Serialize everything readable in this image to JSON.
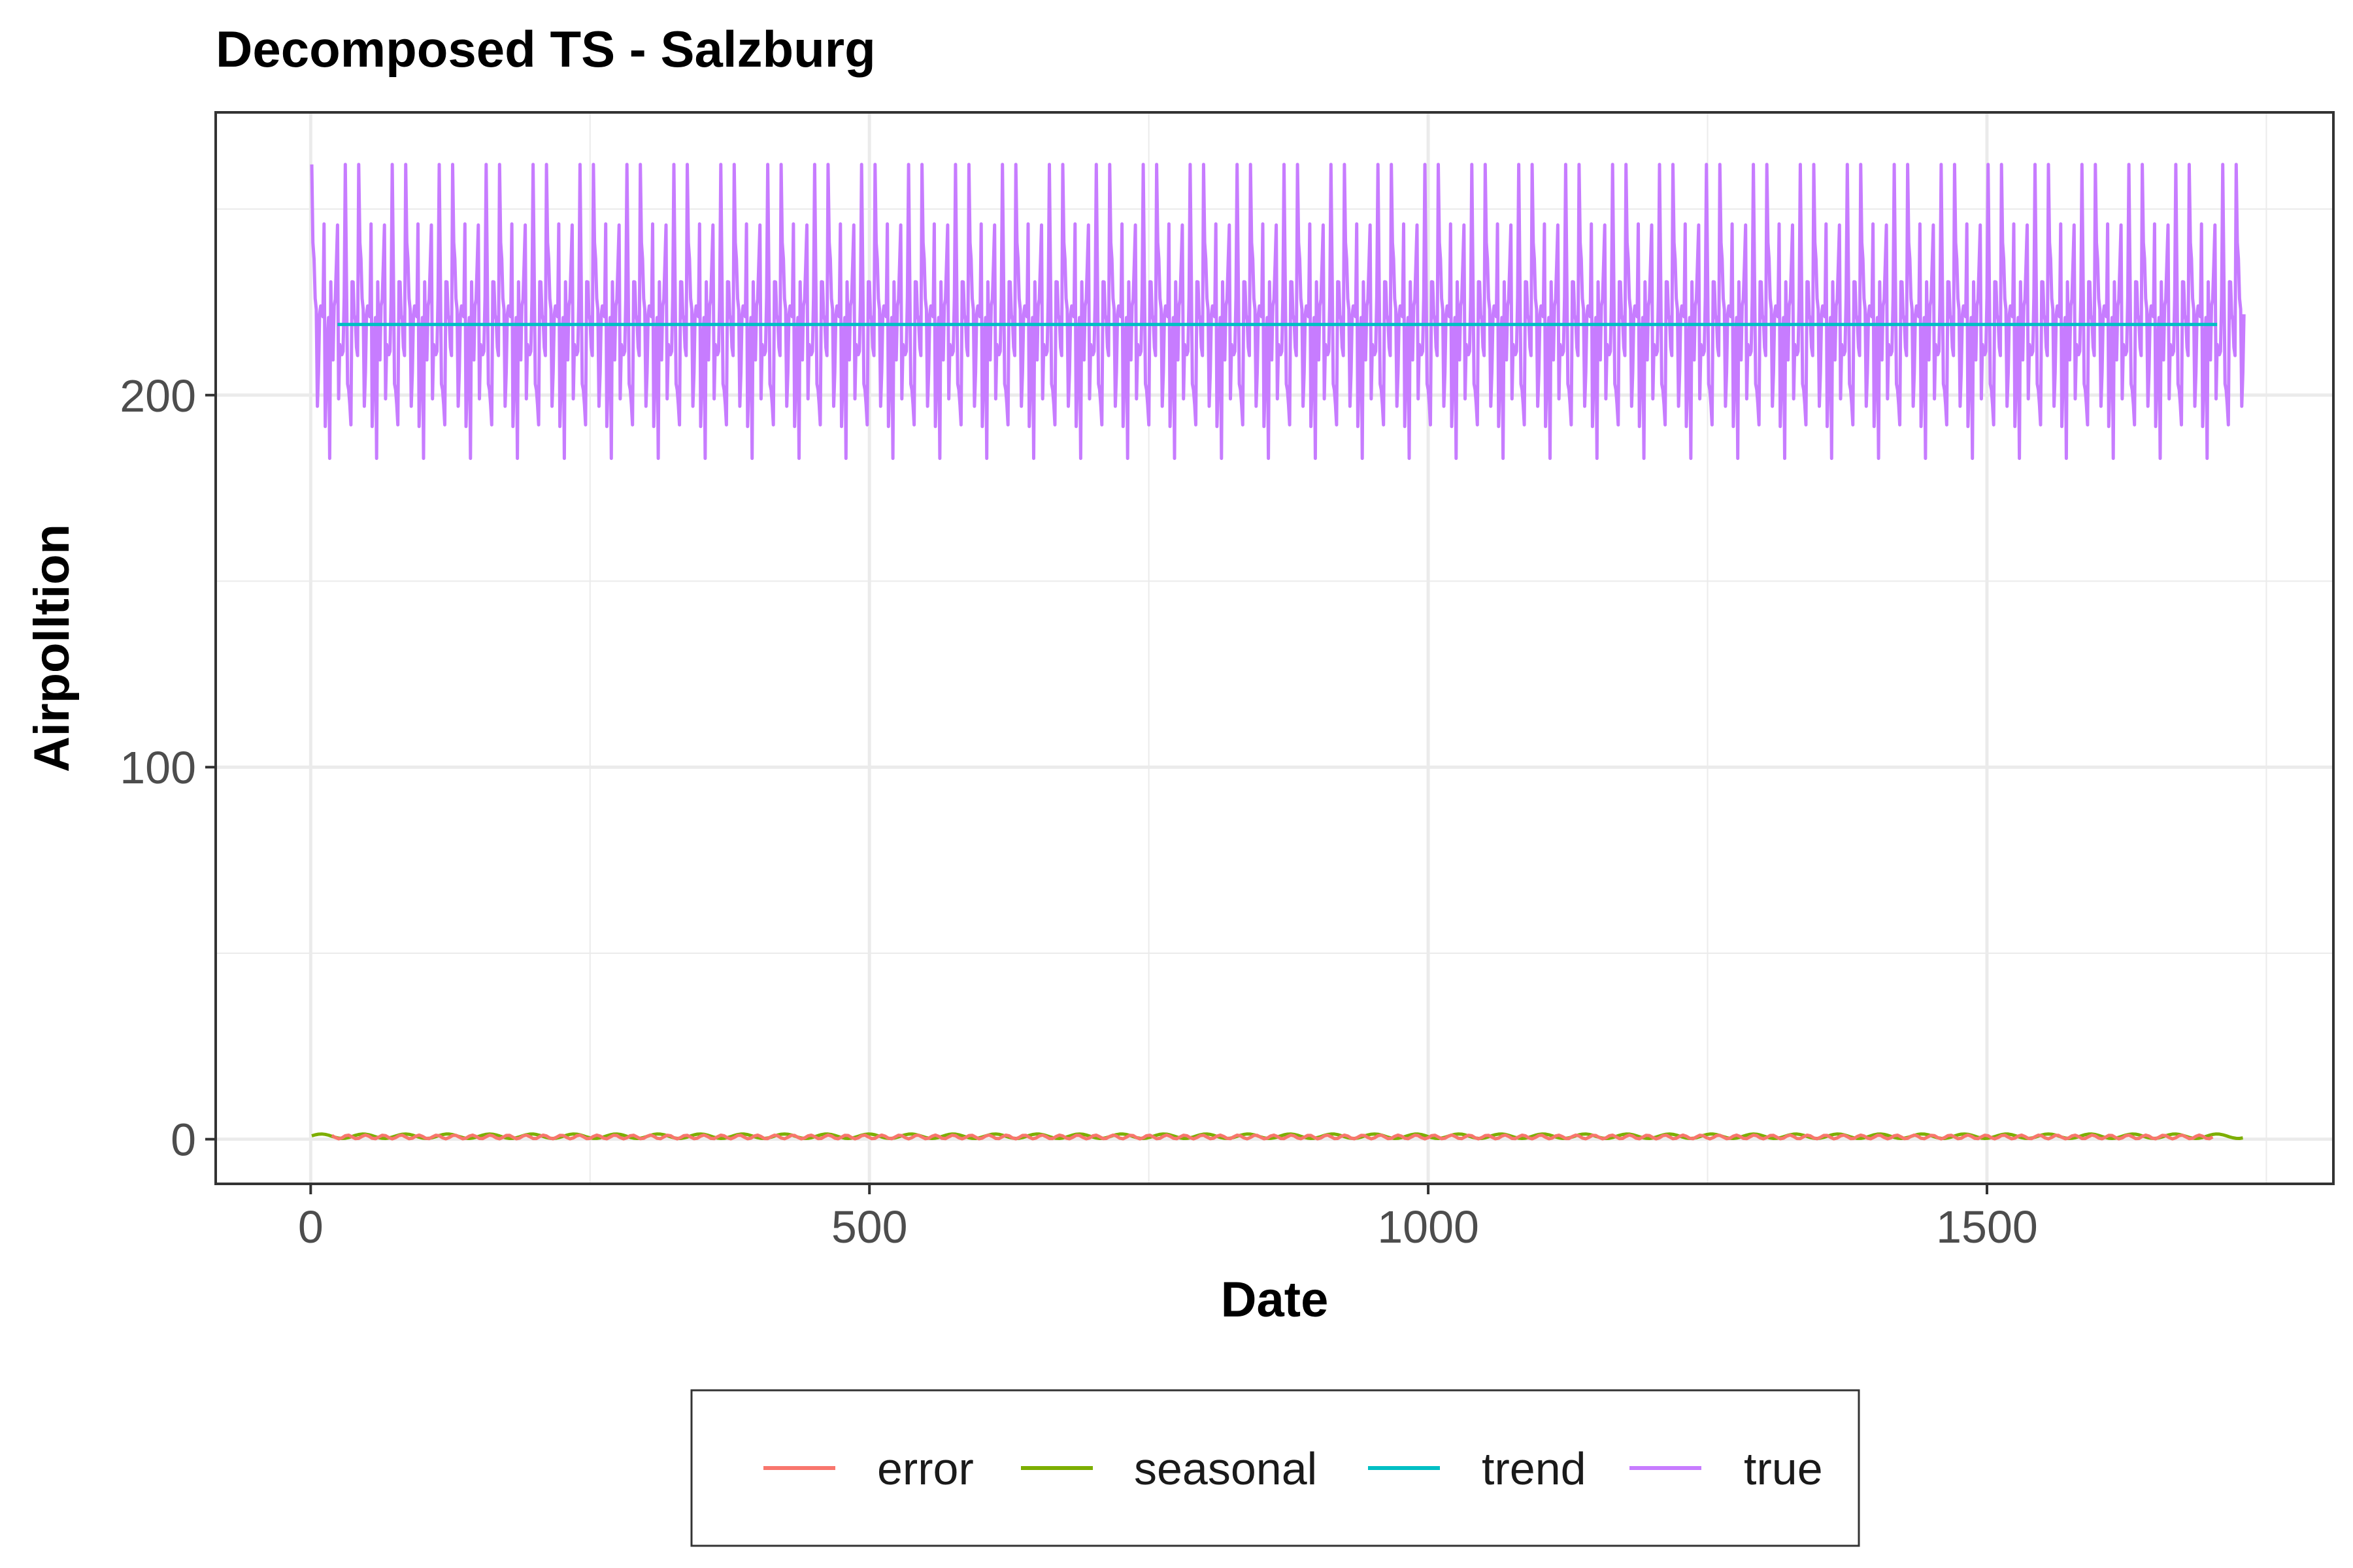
{
  "chart_data": {
    "type": "line",
    "title": "Decomposed TS -  Salzburg",
    "xlabel": "Date",
    "ylabel": "Airpolltion",
    "xlim": [
      -85,
      1810
    ],
    "ylim": [
      -12,
      276
    ],
    "x_ticks": [
      0,
      500,
      1000,
      1500
    ],
    "x_tick_labels": [
      "0",
      "500",
      "1000",
      "1500"
    ],
    "x_minor_ticks": [
      250,
      750,
      1250,
      1750
    ],
    "y_ticks": [
      0,
      100,
      200
    ],
    "y_tick_labels": [
      "0",
      "100",
      "200"
    ],
    "y_minor_ticks": [
      50,
      150,
      250
    ],
    "grid": true,
    "legend_position": "bottom",
    "series": [
      {
        "name": "error",
        "color": "#F8766D",
        "x_range": [
          1,
          1704
        ],
        "values": "approximately 0.6 throughout (roughly 0 to 1.5)"
      },
      {
        "name": "seasonal",
        "color": "#7CAE00",
        "x_range": [
          1,
          1730
        ],
        "values": "approximately 0.8 throughout (roughly 0 to 1.5)"
      },
      {
        "name": "trend",
        "color": "#00BFC4",
        "x_range": [
          24,
          1706
        ],
        "values": "constant at about 219"
      },
      {
        "name": "true",
        "color": "#C77CFF",
        "x_range": [
          1,
          1730
        ],
        "period": 42,
        "min": 183,
        "max": 262,
        "mean": 219
      }
    ]
  }
}
